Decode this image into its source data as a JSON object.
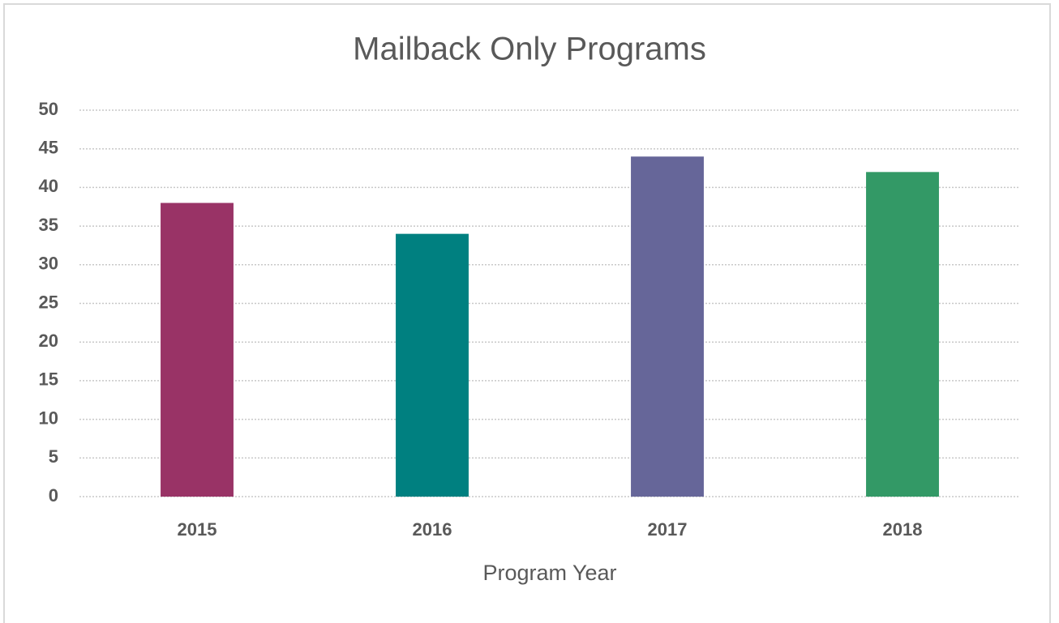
{
  "chart_data": {
    "type": "bar",
    "title": "Mailback Only Programs",
    "x_label": "Program Year",
    "categories": [
      "2015",
      "2016",
      "2017",
      "2018"
    ],
    "values": [
      38,
      34,
      44,
      42
    ],
    "colors": [
      "#993366",
      "#008080",
      "#666699",
      "#339966"
    ],
    "ylim": [
      0,
      50
    ],
    "yticks": [
      0,
      5,
      10,
      15,
      20,
      25,
      30,
      35,
      40,
      45,
      50
    ],
    "grid": true
  }
}
